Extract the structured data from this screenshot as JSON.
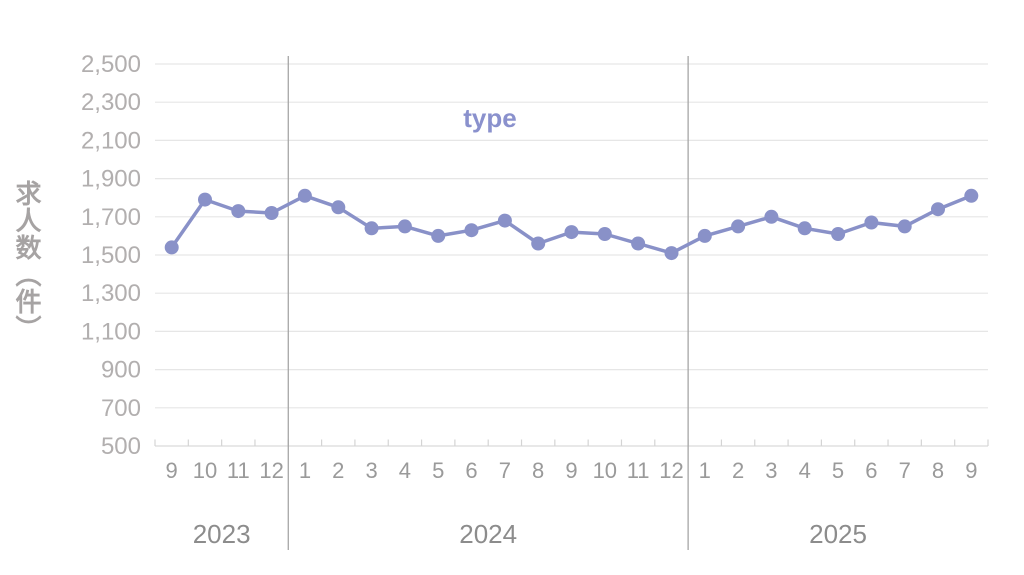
{
  "chart_data": {
    "type": "line",
    "title": "type",
    "ylabel": "求人数（件）",
    "xlabel": "",
    "ylim": [
      500,
      2500
    ],
    "ytick_step": 200,
    "grid": "horizontal",
    "legend_position": "none",
    "series_name": "type",
    "year_groups": [
      {
        "year": "2023",
        "months": [
          "9",
          "10",
          "11",
          "12"
        ],
        "values": [
          1540,
          1790,
          1730,
          1720
        ]
      },
      {
        "year": "2024",
        "months": [
          "1",
          "2",
          "3",
          "4",
          "5",
          "6",
          "7",
          "8",
          "9",
          "10",
          "11",
          "12"
        ],
        "values": [
          1810,
          1750,
          1640,
          1650,
          1600,
          1630,
          1680,
          1560,
          1620,
          1610,
          1560,
          1510
        ]
      },
      {
        "year": "2025",
        "months": [
          "1",
          "2",
          "3",
          "4",
          "5",
          "6",
          "7",
          "8",
          "9"
        ],
        "values": [
          1600,
          1650,
          1700,
          1640,
          1610,
          1670,
          1650,
          1740,
          1810
        ]
      }
    ],
    "colors": {
      "line": "#8991C8",
      "marker": "#8991C8",
      "title": "#8A91CD",
      "gridline": "#E6E6E6",
      "baseline": "#D9D9D9",
      "tick": "#D4D4D4",
      "year_separator": "#A6A6A6",
      "y_tick_label": "#B2AFAF",
      "month_label": "#9A9A9A",
      "year_label": "#8C8C8C",
      "axis_title": "#A6A3A3"
    }
  }
}
